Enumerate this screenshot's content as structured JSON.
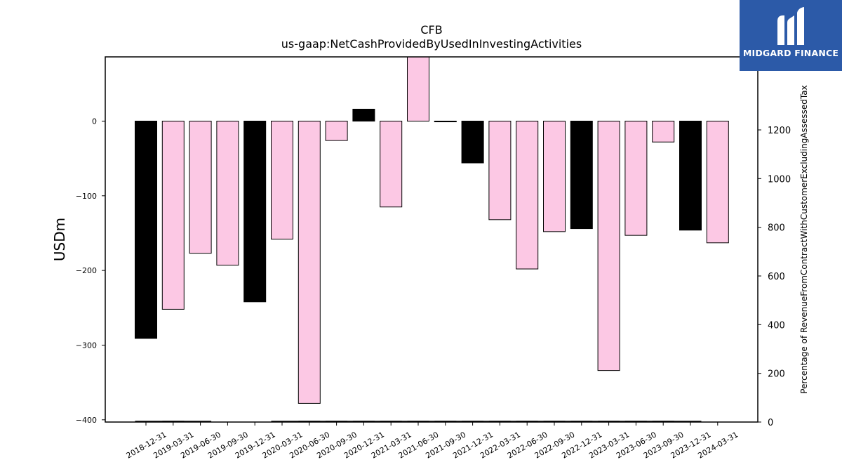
{
  "logo": {
    "text": "MIDGARD FINANCE",
    "icon": "midgard-m-logo-icon",
    "bg_color": "#2c5aa8"
  },
  "chart_data": {
    "type": "bar",
    "title": "CFB",
    "subtitle": "us-gaap:NetCashProvidedByUsedInInvestingActivities",
    "ylabel": "USDm",
    "y2label": "Percentage of RevenueFromContractWithCustomerExcludingAssessedTax",
    "ylim": [
      -403,
      86
    ],
    "y2lim": [
      0,
      1500
    ],
    "yticks": [
      0,
      -100,
      -200,
      -300,
      -400
    ],
    "y2ticks": [
      0,
      200,
      400,
      600,
      800,
      1000,
      1200
    ],
    "categories": [
      "2018-12-31",
      "2019-03-31",
      "2019-06-30",
      "2019-09-30",
      "2019-12-31",
      "2020-03-31",
      "2020-06-30",
      "2020-09-30",
      "2020-12-31",
      "2021-03-31",
      "2021-06-30",
      "2021-09-30",
      "2021-12-31",
      "2022-03-31",
      "2022-06-30",
      "2022-09-30",
      "2022-12-31",
      "2023-03-31",
      "2023-06-30",
      "2023-09-30",
      "2023-12-31",
      "2024-03-31"
    ],
    "values": [
      -291,
      -252,
      -177,
      -193,
      -242,
      -158,
      -378,
      -26,
      16,
      -115,
      97,
      -1,
      -56,
      -132,
      -198,
      -148,
      -144,
      -334,
      -153,
      -28,
      -146,
      -163
    ],
    "bar_colors": [
      "#000000",
      "#fcc8e4",
      "#fcc8e4",
      "#fcc8e4",
      "#000000",
      "#fcc8e4",
      "#fcc8e4",
      "#fcc8e4",
      "#000000",
      "#fcc8e4",
      "#fcc8e4",
      "#000000",
      "#000000",
      "#fcc8e4",
      "#fcc8e4",
      "#fcc8e4",
      "#000000",
      "#fcc8e4",
      "#fcc8e4",
      "#fcc8e4",
      "#000000",
      "#fcc8e4"
    ],
    "percent_series": {
      "values": [
        3,
        3,
        3,
        null,
        null,
        3,
        3,
        3,
        3,
        3,
        3,
        3,
        3,
        3,
        3,
        3,
        3,
        3,
        3,
        3,
        3,
        null
      ],
      "color": "#000000"
    },
    "grid": false,
    "legend": "none"
  }
}
